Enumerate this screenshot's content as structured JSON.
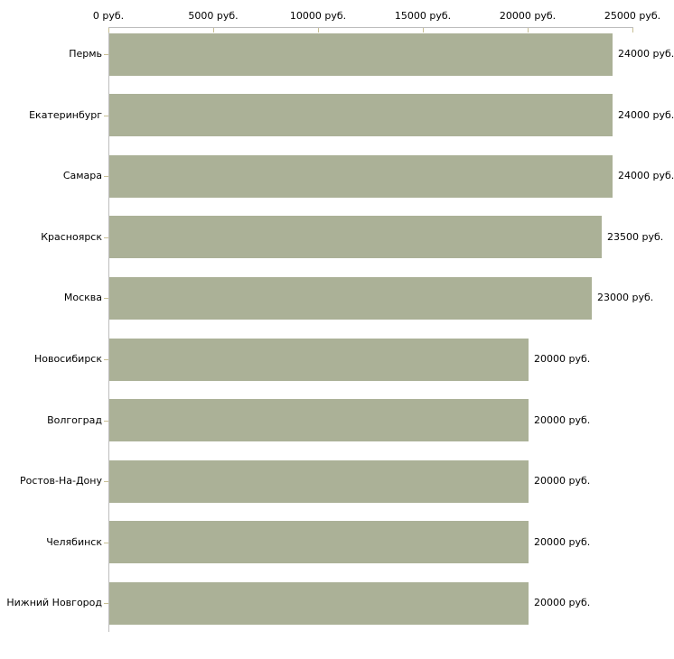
{
  "chart_data": {
    "type": "bar",
    "orientation": "horizontal",
    "title": "",
    "categories": [
      "Пермь",
      "Екатеринбург",
      "Самара",
      "Красноярск",
      "Москва",
      "Новосибирск",
      "Волгоград",
      "Ростов-На-Дону",
      "Челябинск",
      "Нижний Новгород"
    ],
    "values": [
      24000,
      24000,
      24000,
      23500,
      23000,
      20000,
      20000,
      20000,
      20000,
      20000
    ],
    "value_labels": [
      "24000 руб.",
      "24000 руб.",
      "24000 руб.",
      "23500 руб.",
      "23000 руб.",
      "20000 руб.",
      "20000 руб.",
      "20000 руб.",
      "20000 руб.",
      "20000 руб."
    ],
    "x_axis": {
      "position": "top",
      "min": 0,
      "max": 25000,
      "ticks": [
        0,
        5000,
        10000,
        15000,
        20000,
        25000
      ],
      "tick_labels": [
        "0 руб.",
        "5000 руб.",
        "10000 руб.",
        "15000 руб.",
        "20000 руб.",
        "25000 руб."
      ]
    },
    "grid": false,
    "legend": null,
    "colors": {
      "bar": "#abb197",
      "axis_line": "#bdbdbd",
      "tick": "#c8bf94",
      "text": "#000000",
      "background": "#ffffff"
    }
  }
}
